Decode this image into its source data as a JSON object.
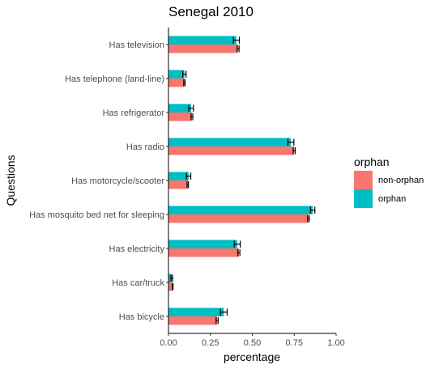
{
  "chart_data": {
    "type": "bar",
    "orientation": "horizontal",
    "title": "Senegal 2010",
    "xlabel": "percentage",
    "ylabel": "Questions",
    "xlim": [
      0,
      1
    ],
    "xticks": [
      "0.00",
      "0.25",
      "0.50",
      "0.75",
      "1.00"
    ],
    "xtick_values": [
      0,
      0.25,
      0.5,
      0.75,
      1.0
    ],
    "grid": false,
    "legend": {
      "title": "orphan",
      "position": "right"
    },
    "categories": [
      "Has television",
      "Has telephone (land-line)",
      "Has refrigerator",
      "Has radio",
      "Has motorcycle/scooter",
      "Has mosquito bed net for sleeping",
      "Has electricity",
      "Has car/truck",
      "Has bicycle"
    ],
    "series": [
      {
        "name": "non-orphan",
        "color": "#F8766D",
        "values": [
          0.415,
          0.095,
          0.14,
          0.75,
          0.115,
          0.835,
          0.42,
          0.025,
          0.29
        ],
        "err": [
          0.006,
          0.004,
          0.005,
          0.006,
          0.004,
          0.005,
          0.006,
          0.002,
          0.006
        ]
      },
      {
        "name": "orphan",
        "color": "#00BFC4",
        "values": [
          0.405,
          0.095,
          0.135,
          0.73,
          0.12,
          0.86,
          0.41,
          0.02,
          0.33
        ],
        "err": [
          0.018,
          0.01,
          0.014,
          0.018,
          0.013,
          0.013,
          0.018,
          0.005,
          0.02
        ]
      }
    ]
  }
}
